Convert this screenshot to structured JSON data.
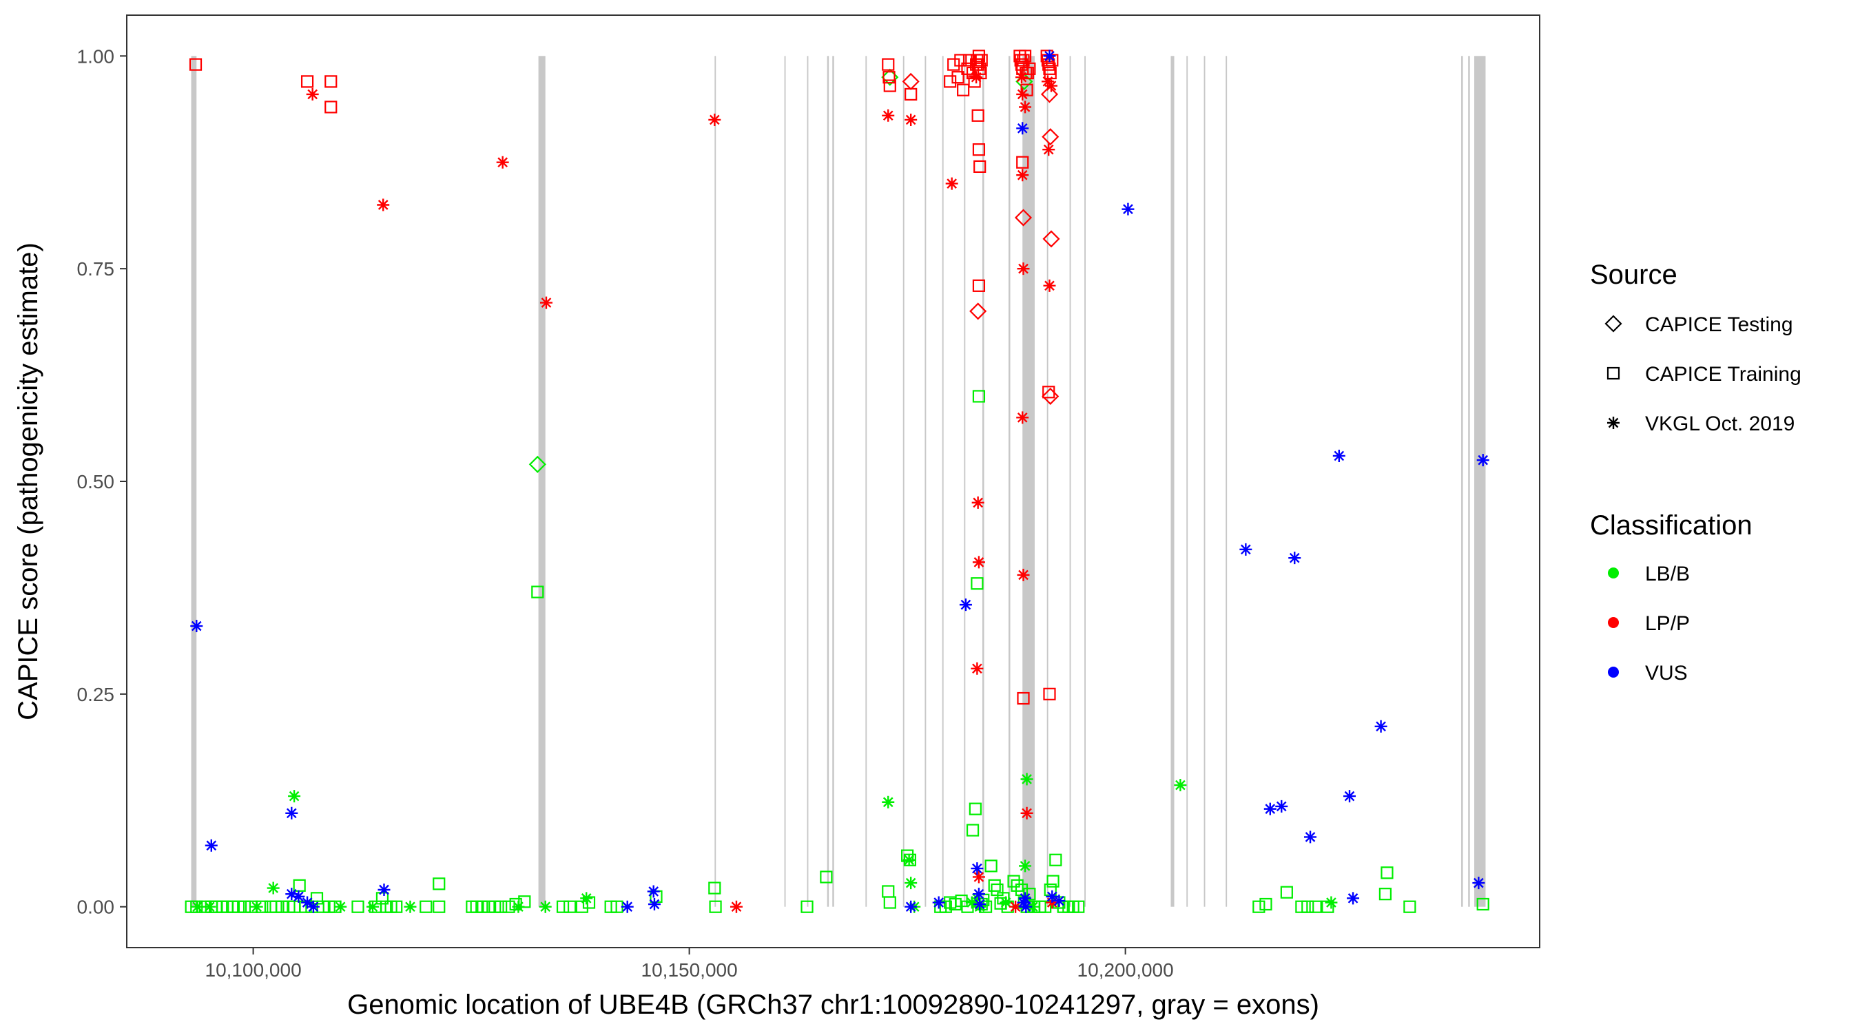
{
  "chart_data": {
    "type": "scatter",
    "title": "",
    "xlabel": "Genomic location of UBE4B (GRCh37 chr1:10092890-10241297, gray = exons)",
    "ylabel": "CAPICE score (pathogenicity estimate)",
    "xlim": [
      10085500,
      10247500
    ],
    "ylim": [
      -0.048,
      1.048
    ],
    "x_ticks": [
      10100000,
      10150000,
      10200000
    ],
    "x_tick_labels": [
      "10,100,000",
      "10,150,000",
      "10,200,000"
    ],
    "y_ticks": [
      0,
      0.25,
      0.5,
      0.75,
      1.0
    ],
    "y_tick_labels": [
      "0.00",
      "0.25",
      "0.50",
      "0.75",
      "1.00"
    ],
    "grid": false,
    "exons": [
      [
        10092890,
        10093500
      ],
      [
        10132700,
        10133500
      ],
      [
        10152900,
        10153050
      ],
      [
        10160900,
        10161050
      ],
      [
        10163500,
        10163650
      ],
      [
        10165800,
        10166000
      ],
      [
        10166400,
        10166600
      ],
      [
        10170200,
        10170350
      ],
      [
        10174500,
        10174650
      ],
      [
        10177000,
        10177150
      ],
      [
        10179000,
        10179150
      ],
      [
        10181500,
        10181650
      ],
      [
        10183600,
        10183800
      ],
      [
        10186600,
        10186800
      ],
      [
        10188200,
        10189600
      ],
      [
        10191000,
        10191150
      ],
      [
        10193600,
        10193750
      ],
      [
        10195300,
        10195450
      ],
      [
        10205200,
        10205600
      ],
      [
        10207000,
        10207150
      ],
      [
        10209000,
        10209150
      ],
      [
        10211500,
        10211650
      ],
      [
        10238500,
        10238700
      ],
      [
        10239300,
        10239500
      ],
      [
        10240000,
        10241297
      ]
    ],
    "legend": {
      "position": "right",
      "source_title": "Source",
      "classification_title": "Classification",
      "sources": [
        {
          "key": "testing",
          "label": "CAPICE Testing",
          "shape": "diamond"
        },
        {
          "key": "training",
          "label": "CAPICE Training",
          "shape": "square"
        },
        {
          "key": "vkgl",
          "label": "VKGL Oct. 2019",
          "shape": "asterisk"
        }
      ],
      "classes": [
        {
          "key": "LB/B",
          "label": "LB/B",
          "color": "#00ee00"
        },
        {
          "key": "LP/P",
          "label": "LP/P",
          "color": "#ff0000"
        },
        {
          "key": "VUS",
          "label": "VUS",
          "color": "#0000ff"
        }
      ]
    },
    "series": [
      {
        "name": "LB/B CAPICE Training",
        "classification": "LB/B",
        "source": "training",
        "points": [
          [
            10092900,
            0
          ],
          [
            10093500,
            0
          ],
          [
            10094500,
            0
          ],
          [
            10095200,
            0
          ],
          [
            10095800,
            0
          ],
          [
            10096500,
            0
          ],
          [
            10097000,
            0
          ],
          [
            10097600,
            0
          ],
          [
            10098300,
            0
          ],
          [
            10099000,
            0
          ],
          [
            10099800,
            0
          ],
          [
            10101000,
            0
          ],
          [
            10102000,
            0
          ],
          [
            10102600,
            0
          ],
          [
            10103300,
            0
          ],
          [
            10104100,
            0
          ],
          [
            10104700,
            0
          ],
          [
            10105300,
            0.025
          ],
          [
            10106000,
            0
          ],
          [
            10106700,
            0
          ],
          [
            10107300,
            0.01
          ],
          [
            10108000,
            0
          ],
          [
            10108700,
            0
          ],
          [
            10109400,
            0
          ],
          [
            10112000,
            0
          ],
          [
            10114000,
            0
          ],
          [
            10114800,
            0.01
          ],
          [
            10115300,
            0
          ],
          [
            10115800,
            0
          ],
          [
            10116400,
            0
          ],
          [
            10119800,
            0
          ],
          [
            10121300,
            0
          ],
          [
            10121300,
            0.027
          ],
          [
            10125100,
            0
          ],
          [
            10125600,
            0
          ],
          [
            10126200,
            0
          ],
          [
            10127000,
            0
          ],
          [
            10127700,
            0
          ],
          [
            10128400,
            0
          ],
          [
            10129300,
            0
          ],
          [
            10130100,
            0.003
          ],
          [
            10131100,
            0.006
          ],
          [
            10132600,
            0.37
          ],
          [
            10135500,
            0
          ],
          [
            10136300,
            0
          ],
          [
            10137700,
            0
          ],
          [
            10138500,
            0.005
          ],
          [
            10141000,
            0
          ],
          [
            10141700,
            0
          ],
          [
            10146200,
            0.012
          ],
          [
            10152900,
            0.022
          ],
          [
            10153000,
            0
          ],
          [
            10163500,
            0
          ],
          [
            10165700,
            0.035
          ],
          [
            10172800,
            0.018
          ],
          [
            10173000,
            0.005
          ],
          [
            10175000,
            0.06
          ],
          [
            10175300,
            0.055
          ],
          [
            10178800,
            0
          ],
          [
            10179400,
            0
          ],
          [
            10179900,
            0.005
          ],
          [
            10180500,
            0.003
          ],
          [
            10181200,
            0.007
          ],
          [
            10181900,
            0
          ],
          [
            10182500,
            0.09
          ],
          [
            10182800,
            0.115
          ],
          [
            10183000,
            0.38
          ],
          [
            10183200,
            0.6
          ],
          [
            10183500,
            0.003
          ],
          [
            10183700,
            0.008
          ],
          [
            10184000,
            0
          ],
          [
            10184600,
            0.048
          ],
          [
            10185000,
            0.025
          ],
          [
            10185300,
            0.02
          ],
          [
            10185700,
            0.004
          ],
          [
            10186000,
            0.01
          ],
          [
            10186500,
            0
          ],
          [
            10187200,
            0.03
          ],
          [
            10187600,
            0.025
          ],
          [
            10188100,
            0.02
          ],
          [
            10188400,
            0.005
          ],
          [
            10188700,
            0
          ],
          [
            10189000,
            0.015
          ],
          [
            10189500,
            0
          ],
          [
            10190200,
            0
          ],
          [
            10190800,
            0
          ],
          [
            10191400,
            0.02
          ],
          [
            10191700,
            0.03
          ],
          [
            10192000,
            0.055
          ],
          [
            10192400,
            0.005
          ],
          [
            10192900,
            0
          ],
          [
            10193500,
            0
          ],
          [
            10194000,
            0
          ],
          [
            10194600,
            0
          ],
          [
            10215300,
            0
          ],
          [
            10216100,
            0.003
          ],
          [
            10218500,
            0.017
          ],
          [
            10220200,
            0
          ],
          [
            10220900,
            0
          ],
          [
            10221800,
            0
          ],
          [
            10223200,
            0
          ],
          [
            10229800,
            0.015
          ],
          [
            10230000,
            0.04
          ],
          [
            10232600,
            0
          ],
          [
            10241000,
            0.003
          ]
        ]
      },
      {
        "name": "LB/B CAPICE Testing",
        "classification": "LB/B",
        "source": "testing",
        "points": [
          [
            10132600,
            0.52
          ],
          [
            10173000,
            0.975
          ],
          [
            10188400,
            0.97
          ]
        ]
      },
      {
        "name": "LB/B VKGL Oct. 2019",
        "classification": "LB/B",
        "source": "vkgl",
        "points": [
          [
            10093600,
            0
          ],
          [
            10095000,
            0
          ],
          [
            10100400,
            0
          ],
          [
            10102300,
            0.022
          ],
          [
            10104700,
            0.13
          ],
          [
            10110000,
            0
          ],
          [
            10113700,
            0
          ],
          [
            10118000,
            0
          ],
          [
            10130400,
            0
          ],
          [
            10133500,
            0
          ],
          [
            10138200,
            0.01
          ],
          [
            10172800,
            0.123
          ],
          [
            10175200,
            0.055
          ],
          [
            10175400,
            0.028
          ],
          [
            10175800,
            0
          ],
          [
            10182400,
            0.005
          ],
          [
            10183000,
            0.01
          ],
          [
            10183300,
            0
          ],
          [
            10186300,
            0.005
          ],
          [
            10188500,
            0.048
          ],
          [
            10188700,
            0.15
          ],
          [
            10189400,
            0
          ],
          [
            10206300,
            0.143
          ],
          [
            10223600,
            0.005
          ]
        ]
      },
      {
        "name": "LP/P CAPICE Training",
        "classification": "LP/P",
        "source": "training",
        "points": [
          [
            10093400,
            0.99
          ],
          [
            10106200,
            0.97
          ],
          [
            10108900,
            0.94
          ],
          [
            10108900,
            0.97
          ],
          [
            10172800,
            0.99
          ],
          [
            10172900,
            0.975
          ],
          [
            10173000,
            0.965
          ],
          [
            10175400,
            0.955
          ],
          [
            10179900,
            0.97
          ],
          [
            10180300,
            0.99
          ],
          [
            10180800,
            0.975
          ],
          [
            10181100,
            0.995
          ],
          [
            10181400,
            0.96
          ],
          [
            10181900,
            0.985
          ],
          [
            10182100,
            0.995
          ],
          [
            10182500,
            0.98
          ],
          [
            10182700,
            0.97
          ],
          [
            10182900,
            0.99
          ],
          [
            10183000,
            0.995
          ],
          [
            10183100,
            0.99
          ],
          [
            10183200,
            1.0
          ],
          [
            10183300,
            0.985
          ],
          [
            10183400,
            0.98
          ],
          [
            10183500,
            0.995
          ],
          [
            10183100,
            0.93
          ],
          [
            10183200,
            0.89
          ],
          [
            10183300,
            0.87
          ],
          [
            10183200,
            0.73
          ],
          [
            10187900,
            1.0
          ],
          [
            10188000,
            0.995
          ],
          [
            10188100,
            0.99
          ],
          [
            10188200,
            0.985
          ],
          [
            10188300,
            0.995
          ],
          [
            10188500,
            1.0
          ],
          [
            10188600,
            0.98
          ],
          [
            10188700,
            0.96
          ],
          [
            10188800,
            0.98
          ],
          [
            10189000,
            0.985
          ],
          [
            10188200,
            0.875
          ],
          [
            10188300,
            0.245
          ],
          [
            10191000,
            1.0
          ],
          [
            10191100,
            0.995
          ],
          [
            10191200,
            0.99
          ],
          [
            10191300,
            0.985
          ],
          [
            10191400,
            0.98
          ],
          [
            10191600,
            0.995
          ],
          [
            10191200,
            0.605
          ],
          [
            10191300,
            0.25
          ]
        ]
      },
      {
        "name": "LP/P CAPICE Testing",
        "classification": "LP/P",
        "source": "testing",
        "points": [
          [
            10175400,
            0.97
          ],
          [
            10183100,
            0.7
          ],
          [
            10188300,
            0.81
          ],
          [
            10191300,
            0.955
          ],
          [
            10191400,
            0.905
          ],
          [
            10191500,
            0.785
          ],
          [
            10191400,
            0.6
          ]
        ]
      },
      {
        "name": "LP/P VKGL Oct. 2019",
        "classification": "LP/P",
        "source": "vkgl",
        "points": [
          [
            10106800,
            0.955
          ],
          [
            10114900,
            0.825
          ],
          [
            10128600,
            0.875
          ],
          [
            10133600,
            0.71
          ],
          [
            10152900,
            0.925
          ],
          [
            10155400,
            0
          ],
          [
            10172800,
            0.93
          ],
          [
            10175400,
            0.925
          ],
          [
            10180100,
            0.85
          ],
          [
            10182900,
            0.975
          ],
          [
            10183100,
            0.475
          ],
          [
            10183200,
            0.405
          ],
          [
            10183000,
            0.28
          ],
          [
            10183200,
            0.035
          ],
          [
            10187400,
            0
          ],
          [
            10188100,
            0.975
          ],
          [
            10188200,
            0.955
          ],
          [
            10188200,
            0.86
          ],
          [
            10188300,
            0.75
          ],
          [
            10188200,
            0.575
          ],
          [
            10188300,
            0.39
          ],
          [
            10188700,
            0.11
          ],
          [
            10188500,
            0.94
          ],
          [
            10191100,
            0.97
          ],
          [
            10191200,
            0.89
          ],
          [
            10191300,
            0.73
          ],
          [
            10191500,
            0.965
          ],
          [
            10191600,
            0.005
          ]
        ]
      },
      {
        "name": "VUS VKGL Oct. 2019",
        "classification": "VUS",
        "source": "vkgl",
        "points": [
          [
            10093500,
            0.33
          ],
          [
            10095200,
            0.072
          ],
          [
            10104400,
            0.11
          ],
          [
            10104400,
            0.015
          ],
          [
            10105200,
            0.012
          ],
          [
            10106200,
            0.005
          ],
          [
            10106900,
            0
          ],
          [
            10115000,
            0.02
          ],
          [
            10142900,
            0
          ],
          [
            10145900,
            0.018
          ],
          [
            10146000,
            0.003
          ],
          [
            10175400,
            0
          ],
          [
            10178600,
            0.005
          ],
          [
            10181700,
            0.355
          ],
          [
            10183000,
            0.045
          ],
          [
            10183200,
            0.015
          ],
          [
            10183300,
            0.003
          ],
          [
            10188200,
            0.915
          ],
          [
            10188300,
            0.005
          ],
          [
            10188500,
            0.01
          ],
          [
            10188600,
            0
          ],
          [
            10191300,
            1.0
          ],
          [
            10191600,
            0.012
          ],
          [
            10192400,
            0.007
          ],
          [
            10200300,
            0.82
          ],
          [
            10213800,
            0.42
          ],
          [
            10216600,
            0.115
          ],
          [
            10217900,
            0.118
          ],
          [
            10219400,
            0.41
          ],
          [
            10221200,
            0.082
          ],
          [
            10224500,
            0.53
          ],
          [
            10225700,
            0.13
          ],
          [
            10226100,
            0.01
          ],
          [
            10229300,
            0.212
          ],
          [
            10240500,
            0.028
          ],
          [
            10241000,
            0.525
          ]
        ]
      }
    ]
  }
}
